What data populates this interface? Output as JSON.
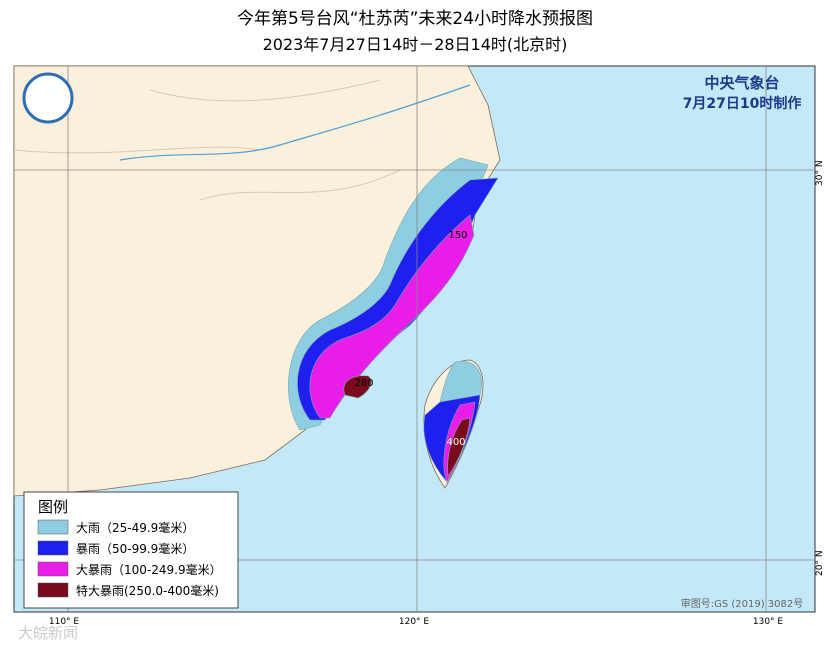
{
  "header": {
    "title": "今年第5号台风“杜苏芮”未来24小时降水预报图",
    "subtitle": "2023年7月27日14时－28日14时(北京时)"
  },
  "issuer": {
    "agency": "中央气象台",
    "issued": "7月27日10时制作"
  },
  "legend": {
    "title": "图例",
    "items": [
      {
        "label": "大雨（25-49.9毫米）",
        "color": "#8fcde3"
      },
      {
        "label": "暴雨（50-99.9毫米）",
        "color": "#1f1ff0"
      },
      {
        "label": "大暴雨（100-249.9毫米）",
        "color": "#e81ee8"
      },
      {
        "label": "特大暴雨(250.0-400毫米)",
        "color": "#7a0a1e"
      }
    ]
  },
  "contour_labels": [
    "150",
    "280",
    "400"
  ],
  "axes": {
    "longitudes": [
      "110° E",
      "120° E",
      "130° E"
    ],
    "latitudes": [
      "30° N",
      "20° N"
    ]
  },
  "approval": "审图号:GS (2019) 3082号",
  "watermark": "大皖新闻"
}
